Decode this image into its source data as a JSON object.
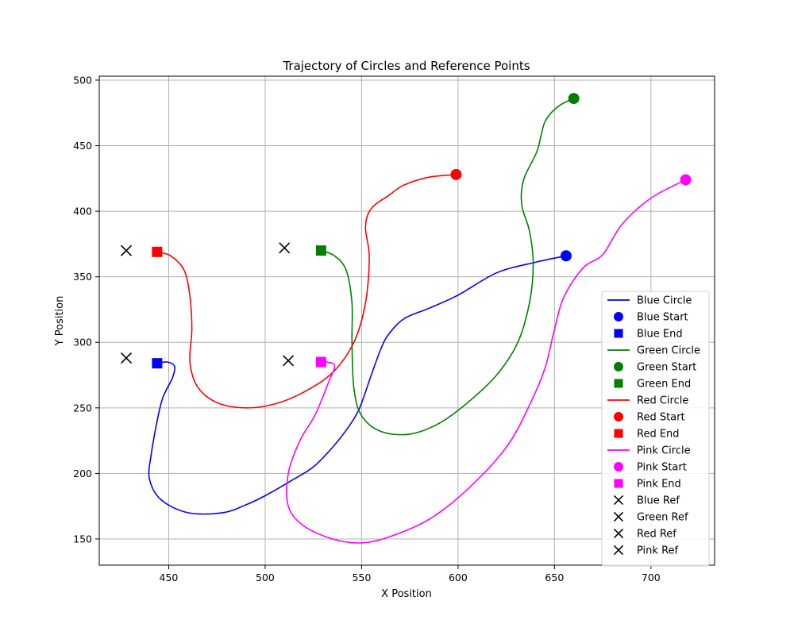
{
  "chart_data": {
    "type": "line",
    "title": "Trajectory of Circles and Reference Points",
    "xlabel": "X Position",
    "ylabel": "Y Position",
    "xlim": [
      414,
      733
    ],
    "ylim": [
      130,
      503
    ],
    "xticks": [
      450,
      500,
      550,
      600,
      650,
      700
    ],
    "yticks": [
      150,
      200,
      250,
      300,
      350,
      400,
      450,
      500
    ],
    "xtick_labels": [
      "450",
      "500",
      "550",
      "600",
      "650",
      "700"
    ],
    "ytick_labels": [
      "150",
      "200",
      "250",
      "300",
      "350",
      "400",
      "450",
      "500"
    ],
    "grid": true,
    "legend_position": "lower-right",
    "series": [
      {
        "name": "Blue Circle",
        "color": "#0000ff",
        "points": [
          [
            656,
            366
          ],
          [
            640,
            361
          ],
          [
            620,
            353
          ],
          [
            600,
            336
          ],
          [
            585,
            326
          ],
          [
            572,
            318
          ],
          [
            564,
            306
          ],
          [
            560,
            295
          ],
          [
            555,
            275
          ],
          [
            549,
            250
          ],
          [
            543,
            235
          ],
          [
            535,
            220
          ],
          [
            525,
            205
          ],
          [
            513,
            194
          ],
          [
            500,
            183
          ],
          [
            490,
            176
          ],
          [
            478,
            170
          ],
          [
            460,
            170
          ],
          [
            446,
            180
          ],
          [
            440,
            196
          ],
          [
            441,
            215
          ],
          [
            444,
            240
          ],
          [
            447,
            258
          ],
          [
            452,
            273
          ],
          [
            453,
            282
          ],
          [
            449,
            285
          ],
          [
            444,
            284
          ]
        ],
        "start": [
          656,
          366
        ],
        "end": [
          444,
          284
        ],
        "start_label": "Blue Start",
        "end_label": "Blue End"
      },
      {
        "name": "Green Circle",
        "color": "#008000",
        "points": [
          [
            660,
            486
          ],
          [
            652,
            480
          ],
          [
            645,
            468
          ],
          [
            641,
            446
          ],
          [
            634,
            424
          ],
          [
            633,
            405
          ],
          [
            637,
            385
          ],
          [
            639,
            360
          ],
          [
            637,
            330
          ],
          [
            631,
            300
          ],
          [
            620,
            275
          ],
          [
            605,
            254
          ],
          [
            590,
            238
          ],
          [
            575,
            230
          ],
          [
            560,
            232
          ],
          [
            550,
            244
          ],
          [
            546,
            265
          ],
          [
            545,
            300
          ],
          [
            545,
            330
          ],
          [
            542,
            355
          ],
          [
            536,
            366
          ],
          [
            529,
            370
          ]
        ],
        "start": [
          660,
          486
        ],
        "end": [
          529,
          370
        ],
        "start_label": "Green Start",
        "end_label": "Green End"
      },
      {
        "name": "Red Circle",
        "color": "#ff0000",
        "points": [
          [
            599,
            428
          ],
          [
            585,
            426
          ],
          [
            572,
            420
          ],
          [
            564,
            412
          ],
          [
            555,
            402
          ],
          [
            552,
            388
          ],
          [
            554,
            365
          ],
          [
            552,
            330
          ],
          [
            546,
            300
          ],
          [
            535,
            277
          ],
          [
            520,
            262
          ],
          [
            505,
            253
          ],
          [
            490,
            250
          ],
          [
            475,
            254
          ],
          [
            465,
            266
          ],
          [
            461,
            285
          ],
          [
            462,
            310
          ],
          [
            461,
            335
          ],
          [
            458,
            355
          ],
          [
            451,
            366
          ],
          [
            444,
            369
          ]
        ],
        "start": [
          599,
          428
        ],
        "end": [
          444,
          369
        ],
        "start_label": "Red Start",
        "end_label": "Red End"
      },
      {
        "name": "Pink Circle",
        "color": "#ff00ff",
        "points": [
          [
            718,
            424
          ],
          [
            700,
            410
          ],
          [
            685,
            390
          ],
          [
            675,
            367
          ],
          [
            665,
            357
          ],
          [
            655,
            335
          ],
          [
            650,
            310
          ],
          [
            645,
            280
          ],
          [
            637,
            252
          ],
          [
            625,
            220
          ],
          [
            605,
            188
          ],
          [
            585,
            165
          ],
          [
            565,
            152
          ],
          [
            550,
            147
          ],
          [
            535,
            150
          ],
          [
            520,
            160
          ],
          [
            512,
            175
          ],
          [
            512,
            200
          ],
          [
            518,
            225
          ],
          [
            526,
            245
          ],
          [
            533,
            270
          ],
          [
            536,
            282
          ],
          [
            532,
            285
          ],
          [
            529,
            285
          ]
        ],
        "start": [
          718,
          424
        ],
        "end": [
          529,
          285
        ],
        "start_label": "Pink Start",
        "end_label": "Pink End"
      }
    ],
    "reference_points": [
      {
        "name": "Blue Ref",
        "points": [
          [
            428,
            370
          ],
          [
            428,
            288
          ]
        ]
      },
      {
        "name": "Green Ref",
        "points": [
          [
            510,
            372
          ]
        ]
      },
      {
        "name": "Red Ref",
        "points": [
          [
            512,
            286
          ]
        ]
      },
      {
        "name": "Pink Ref",
        "points": []
      }
    ],
    "marker_colors": {
      "reference": "#000000"
    },
    "legend": [
      {
        "label": "Blue Circle",
        "kind": "line",
        "color": "#0000ff"
      },
      {
        "label": "Blue Start",
        "kind": "circle",
        "color": "#0000ff"
      },
      {
        "label": "Blue End",
        "kind": "square",
        "color": "#0000ff"
      },
      {
        "label": "Green Circle",
        "kind": "line",
        "color": "#008000"
      },
      {
        "label": "Green Start",
        "kind": "circle",
        "color": "#008000"
      },
      {
        "label": "Green End",
        "kind": "square",
        "color": "#008000"
      },
      {
        "label": "Red Circle",
        "kind": "line",
        "color": "#ff0000"
      },
      {
        "label": "Red Start",
        "kind": "circle",
        "color": "#ff0000"
      },
      {
        "label": "Red End",
        "kind": "square",
        "color": "#ff0000"
      },
      {
        "label": "Pink Circle",
        "kind": "line",
        "color": "#ff00ff"
      },
      {
        "label": "Pink Start",
        "kind": "circle",
        "color": "#ff00ff"
      },
      {
        "label": "Pink End",
        "kind": "square",
        "color": "#ff00ff"
      },
      {
        "label": "Blue Ref",
        "kind": "x",
        "color": "#000000"
      },
      {
        "label": "Green Ref",
        "kind": "x",
        "color": "#000000"
      },
      {
        "label": "Red Ref",
        "kind": "x",
        "color": "#000000"
      },
      {
        "label": "Pink Ref",
        "kind": "x",
        "color": "#000000"
      }
    ]
  }
}
